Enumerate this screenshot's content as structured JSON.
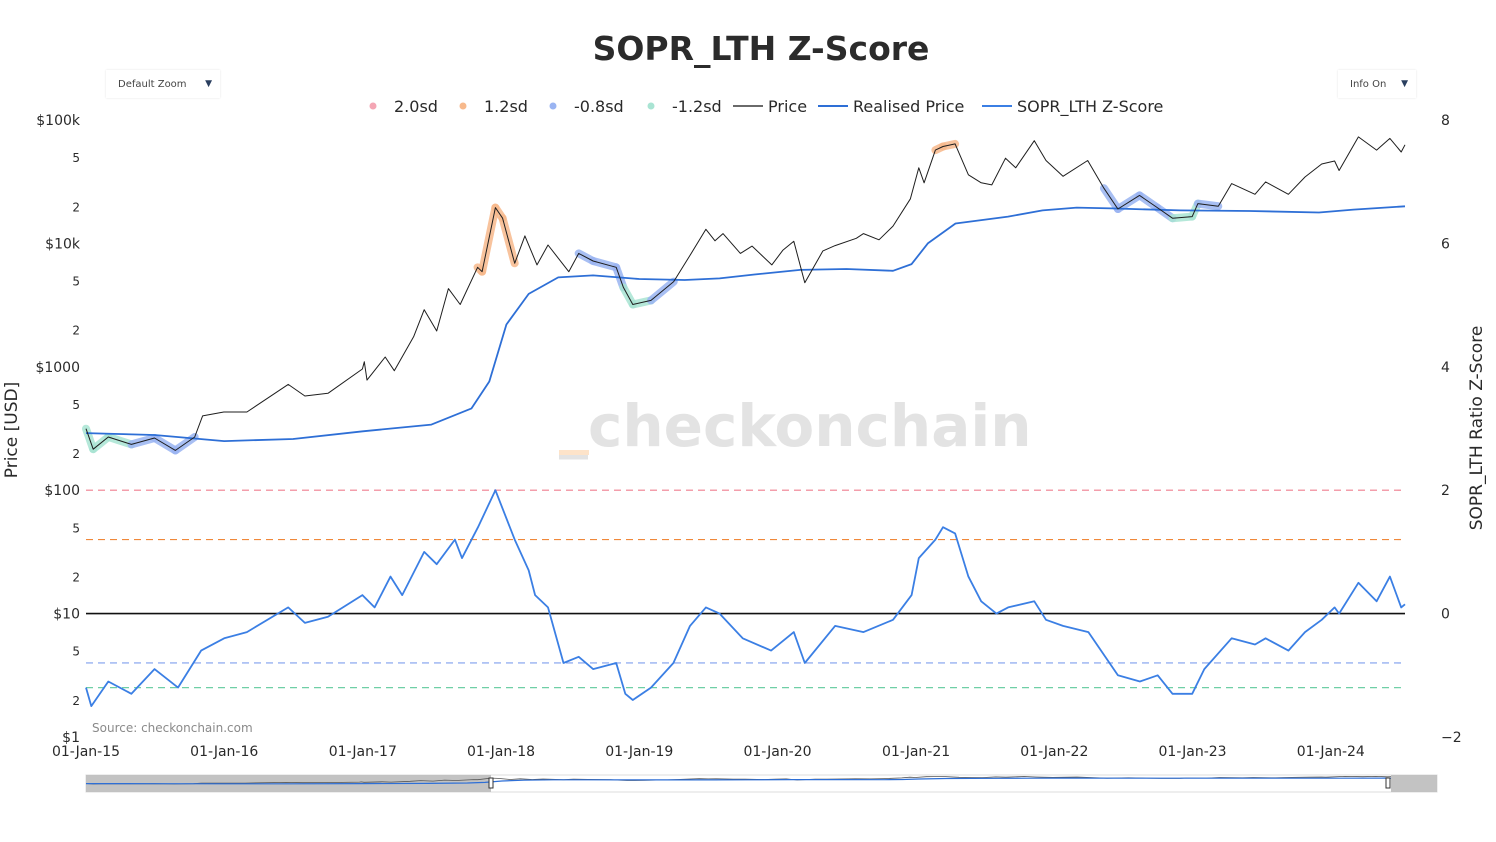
{
  "chart_data": {
    "type": "line",
    "title": "SOPR_LTH Z-Score",
    "yaxis_left": {
      "label": "Price [USD]",
      "scale": "log",
      "range": [
        1,
        100000
      ],
      "tick_labels": [
        "$1",
        "2",
        "5",
        "$10",
        "2",
        "5",
        "$100",
        "2",
        "5",
        "$1000",
        "2",
        "5",
        "$10k",
        "2",
        "5",
        "$100k"
      ]
    },
    "yaxis_right": {
      "label": "SOPR_LTH Ratio Z-Score",
      "range": [
        -2,
        8
      ],
      "tick_labels": [
        "−2",
        "0",
        "2",
        "4",
        "6",
        "8"
      ]
    },
    "xaxis": {
      "range": [
        "2015-01-01",
        "2024-07-15"
      ],
      "tick_labels": [
        "01-Jan-15",
        "01-Jan-16",
        "01-Jan-17",
        "01-Jan-18",
        "01-Jan-19",
        "01-Jan-20",
        "01-Jan-21",
        "01-Jan-22",
        "01-Jan-23",
        "01-Jan-24"
      ]
    },
    "legend": [
      {
        "name": "2.0sd",
        "color": "#f4a6b4",
        "kind": "marker"
      },
      {
        "name": "1.2sd",
        "color": "#f7b98c",
        "kind": "marker"
      },
      {
        "name": "-0.8sd",
        "color": "#9ab4f2",
        "kind": "marker"
      },
      {
        "name": "-1.2sd",
        "color": "#a9e4d3",
        "kind": "marker"
      },
      {
        "name": "Price",
        "color": "#6a6a6a",
        "kind": "line"
      },
      {
        "name": "Realised Price",
        "color": "#2e6fd6",
        "kind": "line"
      },
      {
        "name": "SOPR_LTH Z-Score",
        "color": "#3b7fe4",
        "kind": "line"
      }
    ],
    "bands": [
      {
        "name": "2.0sd",
        "value": 2.0,
        "color": "#ef7f8f"
      },
      {
        "name": "1.2sd",
        "value": 1.2,
        "color": "#f0883a"
      },
      {
        "name": "zero",
        "value": 0,
        "color": "#111111"
      },
      {
        "name": "-0.8sd",
        "value": -0.8,
        "color": "#7f9fee"
      },
      {
        "name": "-1.2sd",
        "value": -1.2,
        "color": "#6fcfa6"
      }
    ],
    "series": [
      {
        "name": "Price",
        "axis": "left",
        "points": [
          [
            "2015-01-01",
            315
          ],
          [
            "2015-01-20",
            215
          ],
          [
            "2015-03-01",
            270
          ],
          [
            "2015-05-01",
            235
          ],
          [
            "2015-07-01",
            265
          ],
          [
            "2015-08-25",
            210
          ],
          [
            "2015-10-15",
            270
          ],
          [
            "2015-11-05",
            400
          ],
          [
            "2015-12-31",
            430
          ],
          [
            "2016-03-01",
            430
          ],
          [
            "2016-06-18",
            720
          ],
          [
            "2016-08-01",
            580
          ],
          [
            "2016-10-01",
            610
          ],
          [
            "2016-12-31",
            960
          ],
          [
            "2017-01-05",
            1100
          ],
          [
            "2017-01-12",
            780
          ],
          [
            "2017-03-01",
            1200
          ],
          [
            "2017-03-25",
            930
          ],
          [
            "2017-05-15",
            1750
          ],
          [
            "2017-06-12",
            2900
          ],
          [
            "2017-07-15",
            1950
          ],
          [
            "2017-08-15",
            4300
          ],
          [
            "2017-09-15",
            3200
          ],
          [
            "2017-10-31",
            6400
          ],
          [
            "2017-11-12",
            5900
          ],
          [
            "2017-12-17",
            19500
          ],
          [
            "2018-01-05",
            16000
          ],
          [
            "2018-02-06",
            6900
          ],
          [
            "2018-03-05",
            11500
          ],
          [
            "2018-04-06",
            6700
          ],
          [
            "2018-05-05",
            9700
          ],
          [
            "2018-06-29",
            5900
          ],
          [
            "2018-07-25",
            8300
          ],
          [
            "2018-09-01",
            7200
          ],
          [
            "2018-11-01",
            6400
          ],
          [
            "2018-11-20",
            4400
          ],
          [
            "2018-12-15",
            3200
          ],
          [
            "2019-02-01",
            3450
          ],
          [
            "2019-04-02",
            4900
          ],
          [
            "2019-05-15",
            8000
          ],
          [
            "2019-06-26",
            13000
          ],
          [
            "2019-07-20",
            10500
          ],
          [
            "2019-08-10",
            12000
          ],
          [
            "2019-09-25",
            8300
          ],
          [
            "2019-10-26",
            9500
          ],
          [
            "2019-12-17",
            6700
          ],
          [
            "2020-01-15",
            8800
          ],
          [
            "2020-02-13",
            10400
          ],
          [
            "2020-03-13",
            4800
          ],
          [
            "2020-04-30",
            8700
          ],
          [
            "2020-06-01",
            9600
          ],
          [
            "2020-07-27",
            11000
          ],
          [
            "2020-08-15",
            12000
          ],
          [
            "2020-09-25",
            10700
          ],
          [
            "2020-11-01",
            13800
          ],
          [
            "2020-12-17",
            23000
          ],
          [
            "2021-01-08",
            41000
          ],
          [
            "2021-01-22",
            31000
          ],
          [
            "2021-02-21",
            57000
          ],
          [
            "2021-03-13",
            61000
          ],
          [
            "2021-04-14",
            64000
          ],
          [
            "2021-05-19",
            36000
          ],
          [
            "2021-06-22",
            31000
          ],
          [
            "2021-07-20",
            29800
          ],
          [
            "2021-08-25",
            49000
          ],
          [
            "2021-09-21",
            41000
          ],
          [
            "2021-11-09",
            68000
          ],
          [
            "2021-12-10",
            47000
          ],
          [
            "2022-01-24",
            35000
          ],
          [
            "2022-03-30",
            47000
          ],
          [
            "2022-05-12",
            28000
          ],
          [
            "2022-06-18",
            19000
          ],
          [
            "2022-08-14",
            24500
          ],
          [
            "2022-09-30",
            19500
          ],
          [
            "2022-11-09",
            16000
          ],
          [
            "2022-12-31",
            16500
          ],
          [
            "2023-01-15",
            21000
          ],
          [
            "2023-03-10",
            20000
          ],
          [
            "2023-04-14",
            30500
          ],
          [
            "2023-06-15",
            25000
          ],
          [
            "2023-07-13",
            31500
          ],
          [
            "2023-09-11",
            25000
          ],
          [
            "2023-10-25",
            34500
          ],
          [
            "2023-12-08",
            44000
          ],
          [
            "2024-01-11",
            46500
          ],
          [
            "2024-01-23",
            39000
          ],
          [
            "2024-03-14",
            73000
          ],
          [
            "2024-05-01",
            57000
          ],
          [
            "2024-06-05",
            71000
          ],
          [
            "2024-07-05",
            55000
          ],
          [
            "2024-07-15",
            63000
          ]
        ]
      },
      {
        "name": "Realised Price",
        "axis": "left",
        "points": [
          [
            "2015-01-01",
            290
          ],
          [
            "2015-07-01",
            280
          ],
          [
            "2016-01-01",
            250
          ],
          [
            "2016-07-01",
            260
          ],
          [
            "2017-01-01",
            300
          ],
          [
            "2017-07-01",
            340
          ],
          [
            "2017-10-15",
            460
          ],
          [
            "2017-12-01",
            760
          ],
          [
            "2018-01-15",
            2200
          ],
          [
            "2018-03-15",
            3900
          ],
          [
            "2018-06-01",
            5300
          ],
          [
            "2018-09-01",
            5500
          ],
          [
            "2019-01-01",
            5150
          ],
          [
            "2019-05-01",
            5050
          ],
          [
            "2019-08-01",
            5200
          ],
          [
            "2019-11-01",
            5600
          ],
          [
            "2020-03-01",
            6100
          ],
          [
            "2020-07-01",
            6200
          ],
          [
            "2020-11-01",
            6000
          ],
          [
            "2020-12-20",
            6800
          ],
          [
            "2021-02-01",
            10000
          ],
          [
            "2021-04-15",
            14500
          ],
          [
            "2021-09-01",
            16500
          ],
          [
            "2021-12-01",
            18500
          ],
          [
            "2022-03-01",
            19500
          ],
          [
            "2022-06-01",
            19200
          ],
          [
            "2022-12-01",
            18500
          ],
          [
            "2023-06-01",
            18300
          ],
          [
            "2023-12-01",
            17800
          ],
          [
            "2024-03-01",
            18800
          ],
          [
            "2024-07-15",
            20000
          ]
        ]
      },
      {
        "name": "SOPR_LTH Z-Score",
        "axis": "right",
        "points": [
          [
            "2015-01-01",
            -1.2
          ],
          [
            "2015-01-15",
            -1.5
          ],
          [
            "2015-03-01",
            -1.1
          ],
          [
            "2015-05-01",
            -1.3
          ],
          [
            "2015-07-01",
            -0.9
          ],
          [
            "2015-09-01",
            -1.2
          ],
          [
            "2015-11-01",
            -0.6
          ],
          [
            "2016-01-01",
            -0.4
          ],
          [
            "2016-03-01",
            -0.3
          ],
          [
            "2016-06-18",
            0.1
          ],
          [
            "2016-08-01",
            -0.15
          ],
          [
            "2016-10-01",
            -0.05
          ],
          [
            "2016-12-31",
            0.3
          ],
          [
            "2017-02-01",
            0.1
          ],
          [
            "2017-03-15",
            0.6
          ],
          [
            "2017-04-15",
            0.3
          ],
          [
            "2017-06-12",
            1.0
          ],
          [
            "2017-07-15",
            0.8
          ],
          [
            "2017-09-01",
            1.2
          ],
          [
            "2017-09-20",
            0.9
          ],
          [
            "2017-11-01",
            1.4
          ],
          [
            "2017-12-17",
            2.0
          ],
          [
            "2018-02-06",
            1.2
          ],
          [
            "2018-03-15",
            0.7
          ],
          [
            "2018-04-01",
            0.3
          ],
          [
            "2018-05-05",
            0.1
          ],
          [
            "2018-06-15",
            -0.8
          ],
          [
            "2018-07-25",
            -0.7
          ],
          [
            "2018-09-01",
            -0.9
          ],
          [
            "2018-11-01",
            -0.8
          ],
          [
            "2018-11-25",
            -1.3
          ],
          [
            "2018-12-15",
            -1.4
          ],
          [
            "2019-02-01",
            -1.2
          ],
          [
            "2019-04-01",
            -0.8
          ],
          [
            "2019-05-15",
            -0.2
          ],
          [
            "2019-06-26",
            0.1
          ],
          [
            "2019-08-01",
            0.0
          ],
          [
            "2019-10-01",
            -0.4
          ],
          [
            "2019-12-15",
            -0.6
          ],
          [
            "2020-02-13",
            -0.3
          ],
          [
            "2020-03-13",
            -0.8
          ],
          [
            "2020-06-01",
            -0.2
          ],
          [
            "2020-08-15",
            -0.3
          ],
          [
            "2020-11-01",
            -0.1
          ],
          [
            "2020-12-20",
            0.3
          ],
          [
            "2021-01-08",
            0.9
          ],
          [
            "2021-02-21",
            1.2
          ],
          [
            "2021-03-13",
            1.4
          ],
          [
            "2021-04-14",
            1.3
          ],
          [
            "2021-05-19",
            0.6
          ],
          [
            "2021-06-22",
            0.2
          ],
          [
            "2021-08-01",
            0.0
          ],
          [
            "2021-09-01",
            0.1
          ],
          [
            "2021-11-09",
            0.2
          ],
          [
            "2021-12-10",
            -0.1
          ],
          [
            "2022-01-24",
            -0.2
          ],
          [
            "2022-04-01",
            -0.3
          ],
          [
            "2022-06-18",
            -1.0
          ],
          [
            "2022-08-15",
            -1.1
          ],
          [
            "2022-10-01",
            -1.0
          ],
          [
            "2022-11-09",
            -1.3
          ],
          [
            "2022-12-31",
            -1.3
          ],
          [
            "2023-02-01",
            -0.9
          ],
          [
            "2023-04-14",
            -0.4
          ],
          [
            "2023-06-15",
            -0.5
          ],
          [
            "2023-07-13",
            -0.4
          ],
          [
            "2023-09-11",
            -0.6
          ],
          [
            "2023-10-25",
            -0.3
          ],
          [
            "2023-12-08",
            -0.1
          ],
          [
            "2024-01-11",
            0.1
          ],
          [
            "2024-01-23",
            0.0
          ],
          [
            "2024-03-14",
            0.5
          ],
          [
            "2024-05-01",
            0.2
          ],
          [
            "2024-06-05",
            0.6
          ],
          [
            "2024-07-05",
            0.1
          ],
          [
            "2024-07-15",
            0.15
          ]
        ]
      }
    ]
  },
  "watermark": "_checkonchain",
  "source_note": "Source: checkonchain.com",
  "controls": {
    "zoom_label": "Default Zoom",
    "info_label": "Info On",
    "arrow": "▼"
  }
}
